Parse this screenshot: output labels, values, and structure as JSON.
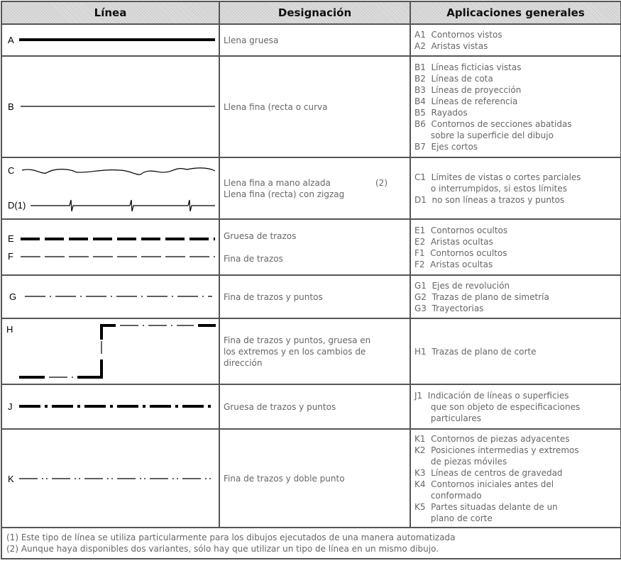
{
  "headers": [
    "Línea",
    "Designación",
    "Aplicaciones generales"
  ],
  "rows": [
    {
      "line": "A",
      "designation": [
        "Llena gruesa"
      ],
      "applications": [
        "A1  Contornos vistos",
        "A2  Aristas vistas"
      ]
    },
    {
      "line": "B",
      "designation": [
        "Llena fina (recta o curva"
      ],
      "applications": [
        "B1  Líneas ficticias vistas",
        "B2  Líneas de cota",
        "B3  Líneas de proyección",
        "B4  Líneas de referencia",
        "B5  Rayados",
        "B6  Contornos de secciones abatidas",
        "      sobre la superficie del dibujo",
        "B7  Ejes cortos"
      ]
    },
    {
      "line": "C",
      "line2": "D(1)",
      "designation": [
        "Llena fina a mano alzada",
        "Llena fina (recta) con zigzag"
      ],
      "note": "(2)",
      "applications": [
        "C1  Límites de vistas o cortes parciales",
        "      o interrumpidos, si estos límites",
        "D1  no son líneas a trazos y puntos"
      ]
    },
    {
      "line": "E",
      "line2": "F",
      "designation": [
        "Gruesa de trazos",
        "Fina de trazos"
      ],
      "applications": [
        "E1  Contornos ocultos",
        "E2  Aristas ocultas",
        "F1  Contornos ocultos",
        "F2  Aristas ocultas"
      ]
    },
    {
      "line": "G",
      "designation": [
        "Fina de trazos y puntos"
      ],
      "applications": [
        "G1  Ejes de revolución",
        "G2  Trazas de plano de simetría",
        "G3  Trayectorias"
      ]
    },
    {
      "line": "H",
      "designation": [
        "Fina de trazos y puntos, gruesa en",
        "los extremos y en los cambios de",
        "dirección"
      ],
      "applications": [
        "H1  Trazas de plano de corte"
      ]
    },
    {
      "line": "J",
      "designation": [
        "Gruesa de trazos y puntos"
      ],
      "applications": [
        "J1  Indicación de líneas o superficies",
        "      que son objeto de especificaciones",
        "      particulares"
      ]
    },
    {
      "line": "K",
      "designation": [
        "Fina de trazos y doble punto"
      ],
      "applications": [
        "K1  Contornos de piezas adyacentes",
        "K2  Posiciones intermedias y extremos",
        "      de piezas móviles",
        "K3  Líneas de centros de gravedad",
        "K4  Contornos iniciales antes del",
        "      conformado",
        "K5  Partes situadas delante de un",
        "      plano de corte"
      ]
    }
  ],
  "footnotes": [
    "(1) Este tipo de línea se utiliza particularmente para los dibujos ejecutados de una manera automatizada",
    "(2) Aunque haya disponibles dos variantes, sólo hay que utilizar un tipo de línea en un mismo dibujo."
  ]
}
